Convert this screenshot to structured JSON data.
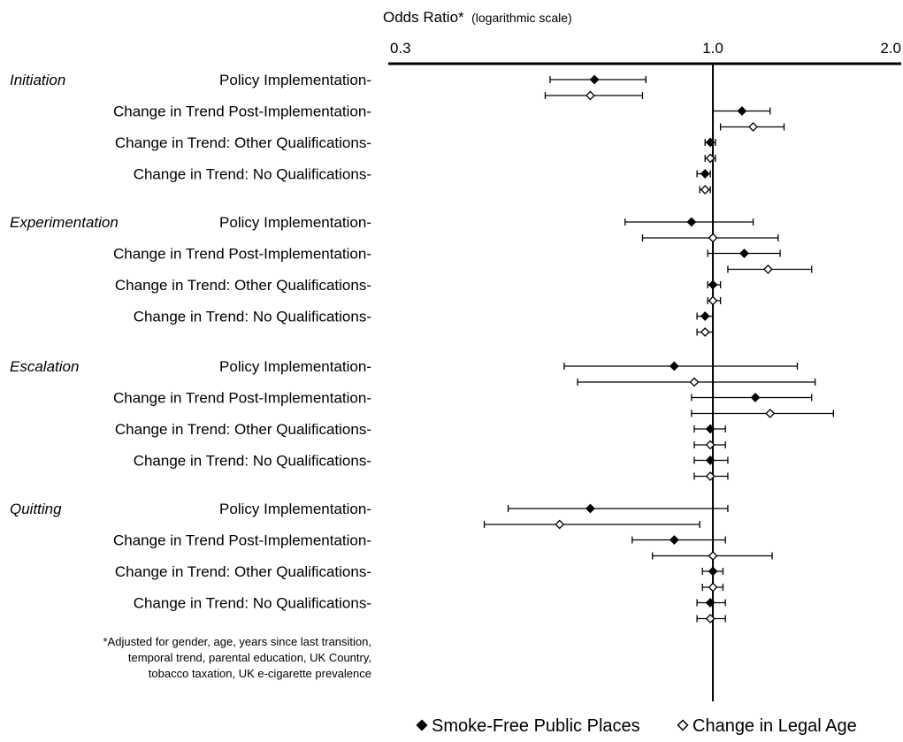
{
  "chart_data": {
    "type": "forest",
    "title": "Odds Ratio*",
    "title_note": "(logarithmic scale)",
    "x_scale": "log",
    "xlim": [
      0.3,
      2.0
    ],
    "x_ticks": [
      {
        "value": 0.3,
        "label": "0.3"
      },
      {
        "value": 1.0,
        "label": "1.0"
      },
      {
        "value": 2.0,
        "label": "2.0"
      }
    ],
    "reference_line": 1.0,
    "series": [
      {
        "name": "Smoke-Free Public Places",
        "marker": "filled-diamond"
      },
      {
        "name": "Change in Legal Age",
        "marker": "open-diamond"
      }
    ],
    "groups": [
      {
        "name": "Initiation",
        "rows": [
          {
            "label": "Policy Implementation-",
            "smoke_free": {
              "or": 0.63,
              "lo": 0.53,
              "hi": 0.77
            },
            "legal_age": {
              "or": 0.62,
              "lo": 0.52,
              "hi": 0.76
            }
          },
          {
            "label": "Change in Trend Post-Implementation-",
            "smoke_free": {
              "or": 1.12,
              "lo": 1.0,
              "hi": 1.25
            },
            "legal_age": {
              "or": 1.17,
              "lo": 1.03,
              "hi": 1.32
            }
          },
          {
            "label": "Change in Trend: Other Qualifications-",
            "smoke_free": {
              "or": 0.99,
              "lo": 0.97,
              "hi": 1.01
            },
            "legal_age": {
              "or": 0.99,
              "lo": 0.97,
              "hi": 1.01
            }
          },
          {
            "label": "Change in Trend: No Qualifications-",
            "smoke_free": {
              "or": 0.97,
              "lo": 0.94,
              "hi": 0.99
            },
            "legal_age": {
              "or": 0.97,
              "lo": 0.95,
              "hi": 0.99
            }
          }
        ]
      },
      {
        "name": "Experimentation",
        "rows": [
          {
            "label": "Policy Implementation-",
            "smoke_free": {
              "or": 0.92,
              "lo": 0.71,
              "hi": 1.17
            },
            "legal_age": {
              "or": 1.0,
              "lo": 0.76,
              "hi": 1.29
            }
          },
          {
            "label": "Change in Trend Post-Implementation-",
            "smoke_free": {
              "or": 1.13,
              "lo": 0.98,
              "hi": 1.3
            },
            "legal_age": {
              "or": 1.24,
              "lo": 1.06,
              "hi": 1.47
            }
          },
          {
            "label": "Change in Trend: Other Qualifications-",
            "smoke_free": {
              "or": 1.0,
              "lo": 0.98,
              "hi": 1.03
            },
            "legal_age": {
              "or": 1.0,
              "lo": 0.98,
              "hi": 1.03
            }
          },
          {
            "label": "Change in Trend: No Qualifications-",
            "smoke_free": {
              "or": 0.97,
              "lo": 0.94,
              "hi": 1.0
            },
            "legal_age": {
              "or": 0.97,
              "lo": 0.94,
              "hi": 1.0
            }
          }
        ]
      },
      {
        "name": "Escalation",
        "rows": [
          {
            "label": "Policy Implementation-",
            "smoke_free": {
              "or": 0.86,
              "lo": 0.56,
              "hi": 1.39
            },
            "legal_age": {
              "or": 0.93,
              "lo": 0.59,
              "hi": 1.49
            }
          },
          {
            "label": "Change in Trend Post-Implementation-",
            "smoke_free": {
              "or": 1.18,
              "lo": 0.92,
              "hi": 1.47
            },
            "legal_age": {
              "or": 1.25,
              "lo": 0.92,
              "hi": 1.6
            }
          },
          {
            "label": "Change in Trend: Other Qualifications-",
            "smoke_free": {
              "or": 0.99,
              "lo": 0.93,
              "hi": 1.05
            },
            "legal_age": {
              "or": 0.99,
              "lo": 0.93,
              "hi": 1.05
            }
          },
          {
            "label": "Change in Trend: No Qualifications-",
            "smoke_free": {
              "or": 0.99,
              "lo": 0.93,
              "hi": 1.06
            },
            "legal_age": {
              "or": 0.99,
              "lo": 0.93,
              "hi": 1.06
            }
          }
        ]
      },
      {
        "name": "Quitting",
        "rows": [
          {
            "label": "Policy Implementation-",
            "smoke_free": {
              "or": 0.62,
              "lo": 0.45,
              "hi": 1.06
            },
            "legal_age": {
              "or": 0.55,
              "lo": 0.41,
              "hi": 0.95
            }
          },
          {
            "label": "Change in Trend Post-Implementation-",
            "smoke_free": {
              "or": 0.86,
              "lo": 0.73,
              "hi": 1.05
            },
            "legal_age": {
              "or": 1.0,
              "lo": 0.79,
              "hi": 1.26
            }
          },
          {
            "label": "Change in Trend: Other Qualifications-",
            "smoke_free": {
              "or": 1.0,
              "lo": 0.96,
              "hi": 1.04
            },
            "legal_age": {
              "or": 1.0,
              "lo": 0.96,
              "hi": 1.04
            }
          },
          {
            "label": "Change in Trend: No Qualifications-",
            "smoke_free": {
              "or": 0.99,
              "lo": 0.94,
              "hi": 1.05
            },
            "legal_age": {
              "or": 0.99,
              "lo": 0.94,
              "hi": 1.05
            }
          }
        ]
      }
    ],
    "footnote": [
      "*Adjusted for gender, age, years since last transition,",
      "temporal trend, parental education, UK Country,",
      "tobacco taxation, UK e-cigarette prevalence"
    ],
    "legend_position": "bottom-right"
  }
}
